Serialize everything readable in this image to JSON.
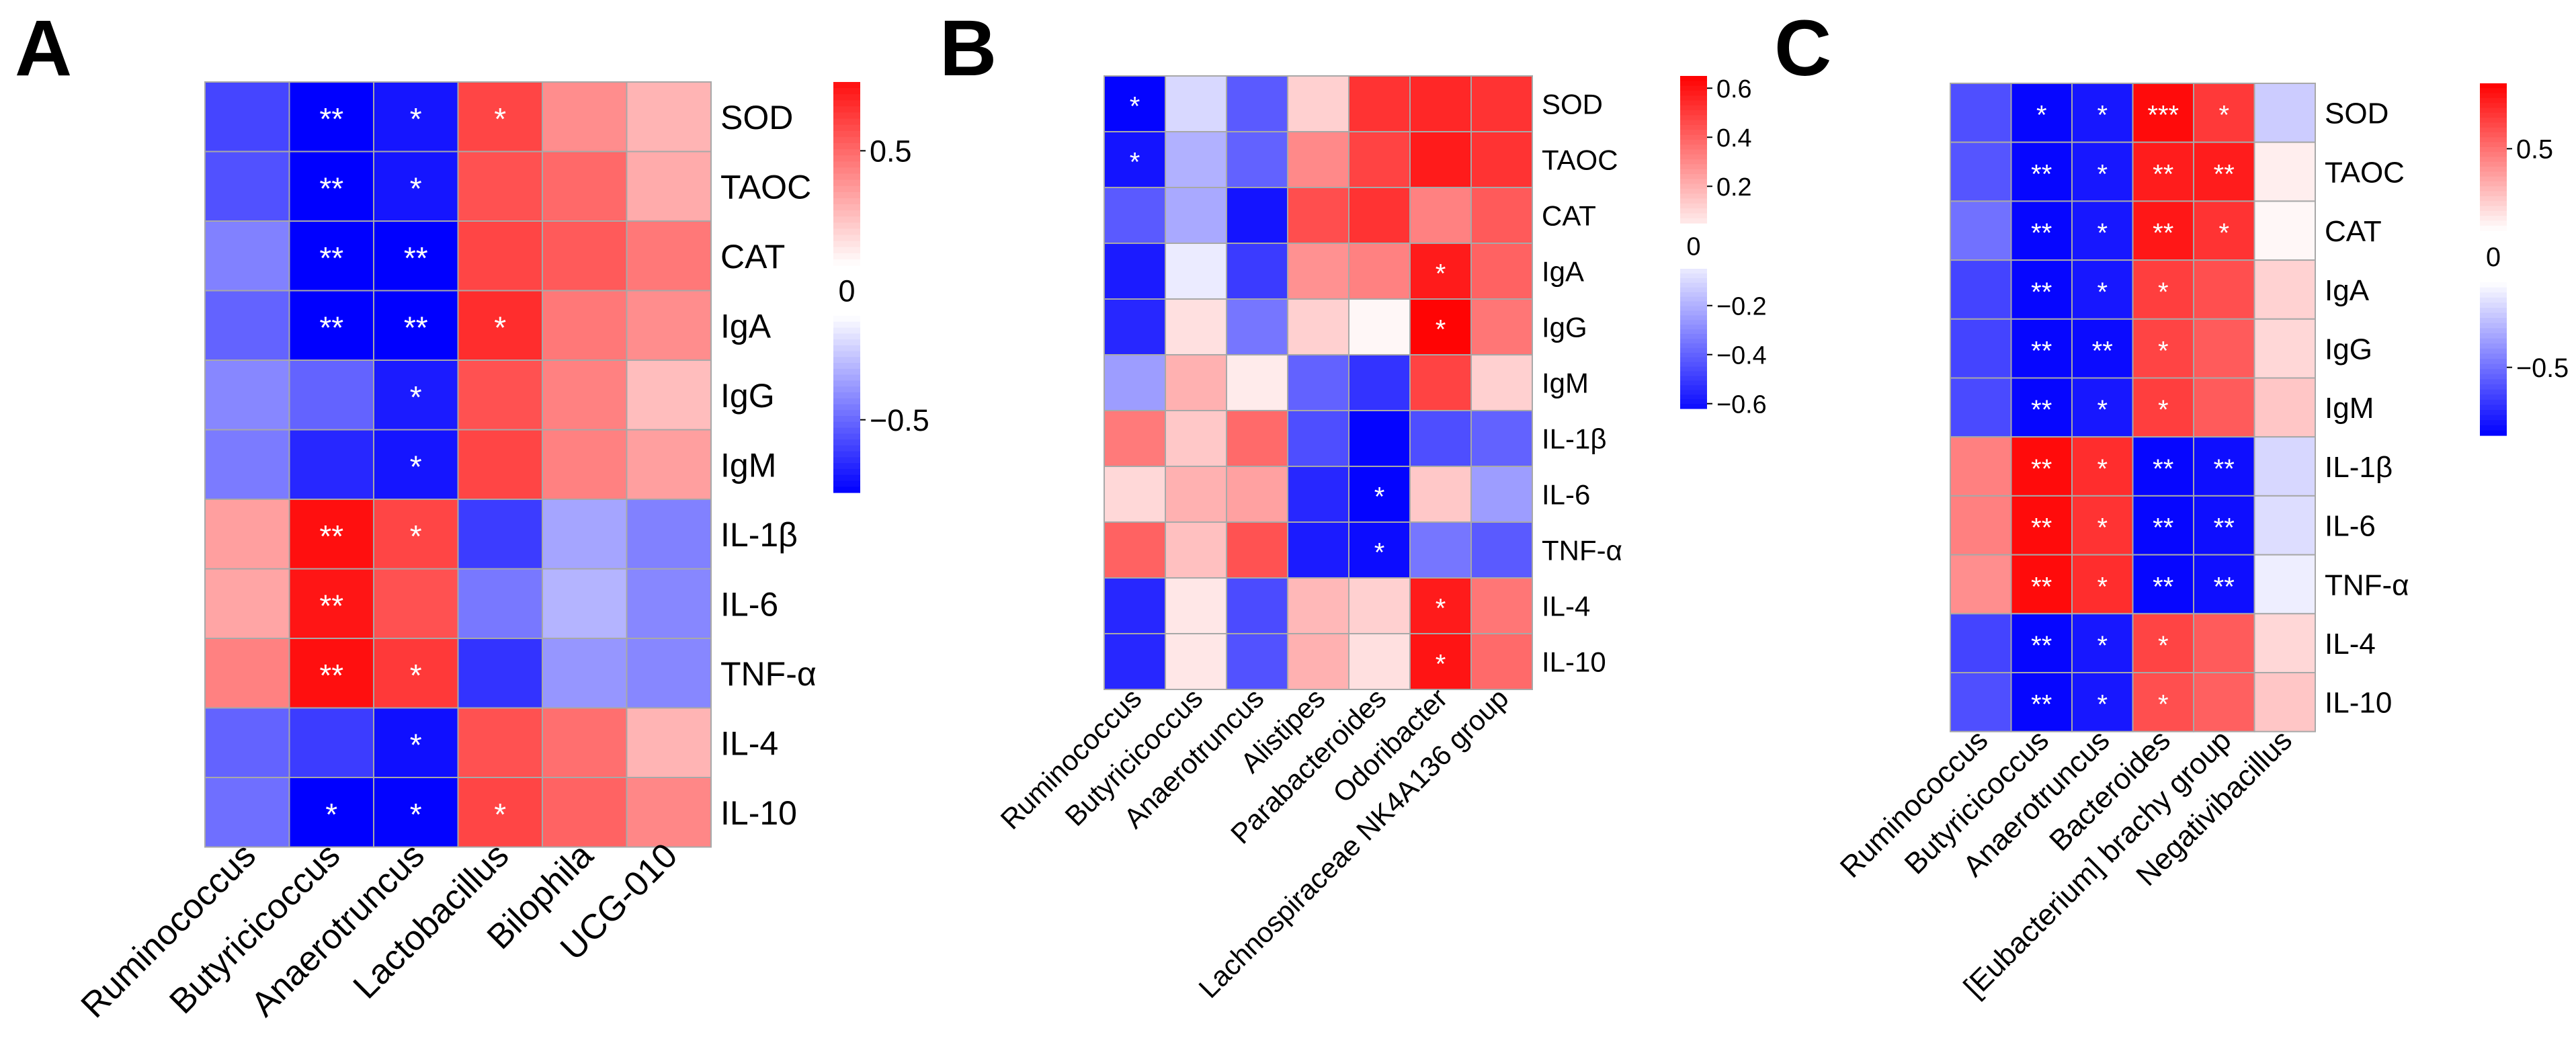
{
  "figure": {
    "panels": [
      "A",
      "B",
      "C"
    ]
  },
  "chart_data": [
    {
      "panel": "A",
      "type": "heatmap",
      "columns": [
        "Ruminococcus",
        "Butyricicoccus",
        "Anaerotruncus",
        "Lactobacillus",
        "Bilophila",
        "UCG-010"
      ],
      "rows": [
        "SOD",
        "TAOC",
        "CAT",
        "IgA",
        "IgG",
        "IgM",
        "IL-1β",
        "IL-6",
        "TNF-α",
        "IL-4",
        "IL-10"
      ],
      "values": [
        [
          -0.62,
          -0.9,
          -0.78,
          0.62,
          0.38,
          0.25
        ],
        [
          -0.58,
          -0.9,
          -0.78,
          0.58,
          0.5,
          0.28
        ],
        [
          -0.42,
          -0.9,
          -0.9,
          0.62,
          0.55,
          0.45
        ],
        [
          -0.52,
          -0.9,
          -0.9,
          0.7,
          0.45,
          0.38
        ],
        [
          -0.4,
          -0.52,
          -0.76,
          0.58,
          0.42,
          0.22
        ],
        [
          -0.44,
          -0.72,
          -0.78,
          0.62,
          0.42,
          0.32
        ],
        [
          0.32,
          0.8,
          0.62,
          -0.65,
          -0.3,
          -0.42
        ],
        [
          0.3,
          0.78,
          0.58,
          -0.45,
          -0.25,
          -0.4
        ],
        [
          0.42,
          0.8,
          0.66,
          -0.68,
          -0.35,
          -0.4
        ],
        [
          -0.52,
          -0.65,
          -0.8,
          0.58,
          0.48,
          0.25
        ],
        [
          -0.48,
          -0.86,
          -0.84,
          0.62,
          0.52,
          0.4
        ]
      ],
      "significance": [
        [
          "",
          "**",
          "*",
          "*",
          "",
          ""
        ],
        [
          "",
          "**",
          "*",
          "",
          "",
          ""
        ],
        [
          "",
          "**",
          "**",
          "",
          "",
          ""
        ],
        [
          "",
          "**",
          "**",
          "*",
          "",
          ""
        ],
        [
          "",
          "",
          "*",
          "",
          "",
          ""
        ],
        [
          "",
          "",
          "*",
          "",
          "",
          ""
        ],
        [
          "",
          "**",
          "*",
          "",
          "",
          ""
        ],
        [
          "",
          "**",
          "",
          "",
          "",
          ""
        ],
        [
          "",
          "**",
          "*",
          "",
          "",
          ""
        ],
        [
          "",
          "",
          "*",
          "",
          "",
          ""
        ],
        [
          "",
          "*",
          "*",
          "*",
          "",
          ""
        ]
      ],
      "colorbar": {
        "pos_range": [
          0,
          0.8
        ],
        "neg_range": [
          -0.85,
          0
        ],
        "pos_ticks": [
          {
            "value": 0.5,
            "label": "0.5"
          }
        ],
        "zero_label": "0",
        "neg_ticks": [
          {
            "value": -0.5,
            "label": "−0.5"
          }
        ]
      }
    },
    {
      "panel": "B",
      "type": "heatmap",
      "columns": [
        "Ruminococcus",
        "Butyricicoccus",
        "Anaerotruncus",
        "Alistipes",
        "Parabacteroides",
        "Odoribacter",
        "Lachnospiraceae NK4A136 group"
      ],
      "rows": [
        "SOD",
        "TAOC",
        "CAT",
        "IgA",
        "IgG",
        "IgM",
        "IL-1β",
        "IL-6",
        "TNF-α",
        "IL-4",
        "IL-10"
      ],
      "values": [
        [
          -0.64,
          -0.1,
          -0.42,
          0.12,
          0.52,
          0.55,
          0.52
        ],
        [
          -0.6,
          -0.2,
          -0.4,
          0.3,
          0.48,
          0.58,
          0.52
        ],
        [
          -0.42,
          -0.22,
          -0.6,
          0.45,
          0.52,
          0.32,
          0.42
        ],
        [
          -0.58,
          -0.05,
          -0.5,
          0.28,
          0.32,
          0.58,
          0.4
        ],
        [
          -0.55,
          0.08,
          -0.35,
          0.12,
          0.02,
          0.64,
          0.35
        ],
        [
          -0.25,
          0.2,
          0.05,
          -0.4,
          -0.52,
          0.48,
          0.12
        ],
        [
          0.34,
          0.14,
          0.38,
          -0.45,
          -0.64,
          -0.45,
          -0.4
        ],
        [
          0.1,
          0.2,
          0.24,
          -0.55,
          -0.64,
          0.14,
          -0.25
        ],
        [
          0.4,
          0.16,
          0.44,
          -0.58,
          -0.62,
          -0.35,
          -0.42
        ],
        [
          -0.55,
          0.06,
          -0.46,
          0.18,
          0.12,
          0.58,
          0.35
        ],
        [
          -0.55,
          0.06,
          -0.44,
          0.2,
          0.08,
          0.6,
          0.38
        ]
      ],
      "significance": [
        [
          "*",
          "",
          "",
          "",
          "",
          "",
          ""
        ],
        [
          "*",
          "",
          "",
          "",
          "",
          "",
          ""
        ],
        [
          "",
          "",
          "",
          "",
          "",
          "",
          ""
        ],
        [
          "",
          "",
          "",
          "",
          "",
          "*",
          ""
        ],
        [
          "",
          "",
          "",
          "",
          "",
          "*",
          ""
        ],
        [
          "",
          "",
          "",
          "",
          "",
          "",
          ""
        ],
        [
          "",
          "",
          "",
          "",
          "",
          "",
          ""
        ],
        [
          "",
          "",
          "",
          "",
          "*",
          "",
          ""
        ],
        [
          "",
          "",
          "",
          "",
          "*",
          "",
          ""
        ],
        [
          "",
          "",
          "",
          "",
          "",
          "*",
          ""
        ],
        [
          "",
          "",
          "",
          "",
          "",
          "*",
          ""
        ]
      ],
      "colorbar": {
        "pos_range": [
          0.05,
          0.65
        ],
        "neg_range": [
          -0.62,
          -0.05
        ],
        "pos_ticks": [
          {
            "value": 0.6,
            "label": "0.6"
          },
          {
            "value": 0.4,
            "label": "0.4"
          },
          {
            "value": 0.2,
            "label": "0.2"
          }
        ],
        "zero_label": "0",
        "neg_ticks": [
          {
            "value": -0.2,
            "label": "−0.2"
          },
          {
            "value": -0.4,
            "label": "−0.4"
          },
          {
            "value": -0.6,
            "label": "−0.6"
          }
        ]
      }
    },
    {
      "panel": "C",
      "type": "heatmap",
      "columns": [
        "Ruminococcus",
        "Butyricicoccus",
        "Anaerotruncus",
        "Bacteroides",
        "[Eubacterium] brachy group",
        "Negativibacillus"
      ],
      "rows": [
        "SOD",
        "TAOC",
        "CAT",
        "IgA",
        "IgG",
        "IgM",
        "IL-1β",
        "IL-6",
        "TNF-α",
        "IL-4",
        "IL-10"
      ],
      "values": [
        [
          -0.62,
          -0.88,
          -0.82,
          0.86,
          0.7,
          -0.18
        ],
        [
          -0.6,
          -0.88,
          -0.82,
          0.8,
          0.8,
          0.06
        ],
        [
          -0.5,
          -0.88,
          -0.82,
          0.82,
          0.72,
          0.03
        ],
        [
          -0.66,
          -0.88,
          -0.82,
          0.68,
          0.62,
          0.16
        ],
        [
          -0.66,
          -0.88,
          -0.86,
          0.66,
          0.58,
          0.14
        ],
        [
          -0.64,
          -0.88,
          -0.82,
          0.68,
          0.58,
          0.2
        ],
        [
          0.45,
          0.86,
          0.74,
          -0.88,
          -0.85,
          -0.14
        ],
        [
          0.45,
          0.86,
          0.72,
          -0.88,
          -0.85,
          -0.12
        ],
        [
          0.4,
          0.86,
          0.74,
          -0.88,
          -0.85,
          -0.06
        ],
        [
          -0.66,
          -0.88,
          -0.82,
          0.66,
          0.58,
          0.14
        ],
        [
          -0.62,
          -0.88,
          -0.82,
          0.62,
          0.56,
          0.2
        ]
      ],
      "significance": [
        [
          "",
          "*",
          "*",
          "***",
          "*",
          ""
        ],
        [
          "",
          "**",
          "*",
          "**",
          "**",
          ""
        ],
        [
          "",
          "**",
          "*",
          "**",
          "*",
          ""
        ],
        [
          "",
          "**",
          "*",
          "*",
          "",
          ""
        ],
        [
          "",
          "**",
          "**",
          "*",
          "",
          ""
        ],
        [
          "",
          "**",
          "*",
          "*",
          "",
          ""
        ],
        [
          "",
          "**",
          "*",
          "**",
          "**",
          ""
        ],
        [
          "",
          "**",
          "*",
          "**",
          "**",
          ""
        ],
        [
          "",
          "**",
          "*",
          "**",
          "**",
          ""
        ],
        [
          "",
          "**",
          "*",
          "*",
          "",
          ""
        ],
        [
          "",
          "**",
          "*",
          "*",
          "",
          ""
        ]
      ],
      "colorbar": {
        "pos_range": [
          0,
          0.9
        ],
        "neg_range": [
          -0.9,
          0
        ],
        "pos_ticks": [
          {
            "value": 0.5,
            "label": "0.5"
          }
        ],
        "zero_label": "0",
        "neg_ticks": [
          {
            "value": -0.5,
            "label": "−0.5"
          }
        ]
      }
    }
  ]
}
